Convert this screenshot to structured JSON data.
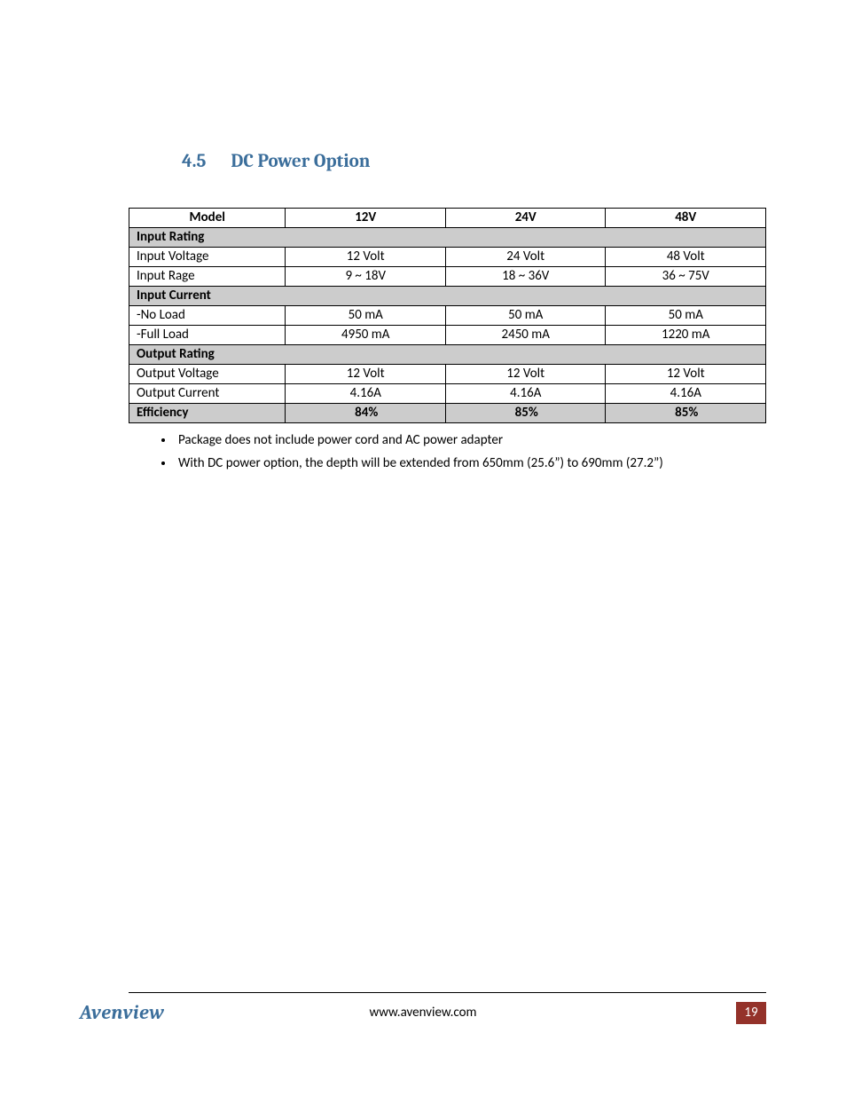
{
  "heading": {
    "number": "4.5",
    "title": "DC Power Option",
    "color": "#3b6e9b",
    "fontsize": 21
  },
  "table": {
    "columns": [
      "Model",
      "12V",
      "24V",
      "48V"
    ],
    "header_bg": "#ffffff",
    "section_bg": "#cccccc",
    "border_color": "#000000",
    "fontsize": 15,
    "rows": [
      {
        "type": "section",
        "label": "Input Rating"
      },
      {
        "type": "data",
        "label": "Input Voltage",
        "v12": "12 Volt",
        "v24": "24 Volt",
        "v48": "48 Volt"
      },
      {
        "type": "data",
        "label": "Input Rage",
        "v12": "9 ~ 18V",
        "v24": "18 ~ 36V",
        "v48": "36 ~ 75V"
      },
      {
        "type": "section",
        "label": "Input Current"
      },
      {
        "type": "data",
        "label": "-No Load",
        "v12": "50 mA",
        "v24": "50 mA",
        "v48": "50 mA"
      },
      {
        "type": "data",
        "label": "-Full Load",
        "v12": "4950 mA",
        "v24": "2450 mA",
        "v48": "1220 mA"
      },
      {
        "type": "section",
        "label": "Output Rating"
      },
      {
        "type": "data",
        "label": "Output Voltage",
        "v12": "12 Volt",
        "v24": "12 Volt",
        "v48": "12 Volt"
      },
      {
        "type": "data",
        "label": "Output Current",
        "v12": "4.16A",
        "v24": "4.16A",
        "v48": "4.16A"
      },
      {
        "type": "eff",
        "label": "Efficiency",
        "v12": "84%",
        "v24": "85%",
        "v48": "85%"
      }
    ]
  },
  "notes": [
    "Package does not include power cord and AC power adapter",
    "With DC power option, the depth will be extended from 650mm (25.6”) to 690mm (27.2”)"
  ],
  "footer": {
    "logo_text": "Avenview",
    "logo_color": "#3b6e9b",
    "url": "www.avenview.com",
    "page": "19",
    "page_bg": "#94322a",
    "page_color": "#ffffff"
  }
}
